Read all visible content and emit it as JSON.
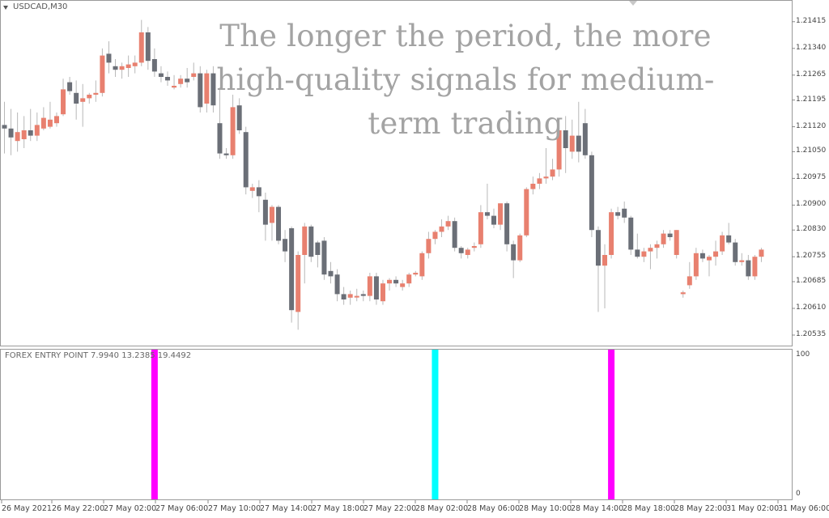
{
  "window": {
    "symbol_title": "USDCAD,M30"
  },
  "overlay": {
    "lines": [
      "The longer the period, the more",
      "high-quality signals for medium-",
      "term trading"
    ]
  },
  "indicator": {
    "title": "FOREX ENTRY POINT 7.9940 13.2385 19.4492",
    "axis_labels": [
      "100",
      "0"
    ],
    "signals": [
      {
        "bar": 23,
        "color": "#ff00ff",
        "type": "sell"
      },
      {
        "bar": 66,
        "color": "#00ffff",
        "type": "buy"
      },
      {
        "bar": 93,
        "color": "#ff00ff",
        "type": "sell"
      }
    ]
  },
  "price_axis": {
    "labels": [
      "1.21415",
      "1.21340",
      "1.21265",
      "1.21195",
      "1.21120",
      "1.21050",
      "1.20975",
      "1.20900",
      "1.20830",
      "1.20755",
      "1.20685",
      "1.20610",
      "1.20535"
    ]
  },
  "time_axis": {
    "labels": [
      "26 May 2021",
      "26 May 22:00",
      "27 May 02:00",
      "27 May 06:00",
      "27 May 10:00",
      "27 May 14:00",
      "27 May 18:00",
      "27 May 22:00",
      "28 May 02:00",
      "28 May 06:00",
      "28 May 10:00",
      "28 May 14:00",
      "28 May 18:00",
      "28 May 22:00",
      "31 May 02:00",
      "31 May 06:00"
    ]
  },
  "colors": {
    "bull": "#e8806f",
    "bear": "#6b6f77",
    "wick": "#b8b8b8",
    "grid_frame": "#9a9a9a",
    "overlay_text": "#a3a3a3"
  },
  "chart_data": {
    "type": "candlestick",
    "symbol": "USDCAD",
    "timeframe": "M30",
    "ylim": [
      1.2051,
      1.2146
    ],
    "candles": [
      {
        "o": 1.21125,
        "h": 1.2119,
        "l": 1.21045,
        "c": 1.21115
      },
      {
        "o": 1.21115,
        "h": 1.2117,
        "l": 1.2104,
        "c": 1.2109
      },
      {
        "o": 1.2108,
        "h": 1.2116,
        "l": 1.2105,
        "c": 1.21105
      },
      {
        "o": 1.21085,
        "h": 1.2115,
        "l": 1.2106,
        "c": 1.2111
      },
      {
        "o": 1.2111,
        "h": 1.2117,
        "l": 1.2108,
        "c": 1.21095
      },
      {
        "o": 1.21095,
        "h": 1.2116,
        "l": 1.2108,
        "c": 1.21125
      },
      {
        "o": 1.21115,
        "h": 1.21175,
        "l": 1.2111,
        "c": 1.21145
      },
      {
        "o": 1.2112,
        "h": 1.2119,
        "l": 1.21115,
        "c": 1.2114
      },
      {
        "o": 1.2113,
        "h": 1.2116,
        "l": 1.2112,
        "c": 1.2115
      },
      {
        "o": 1.21155,
        "h": 1.21255,
        "l": 1.2115,
        "c": 1.21225
      },
      {
        "o": 1.21245,
        "h": 1.2126,
        "l": 1.2121,
        "c": 1.2122
      },
      {
        "o": 1.21215,
        "h": 1.2125,
        "l": 1.2114,
        "c": 1.21185
      },
      {
        "o": 1.2119,
        "h": 1.2124,
        "l": 1.2112,
        "c": 1.212
      },
      {
        "o": 1.212,
        "h": 1.21215,
        "l": 1.21185,
        "c": 1.2121
      },
      {
        "o": 1.2121,
        "h": 1.2125,
        "l": 1.2119,
        "c": 1.21215
      },
      {
        "o": 1.21215,
        "h": 1.2134,
        "l": 1.21205,
        "c": 1.2132
      },
      {
        "o": 1.21325,
        "h": 1.2136,
        "l": 1.2127,
        "c": 1.213
      },
      {
        "o": 1.2129,
        "h": 1.2131,
        "l": 1.2126,
        "c": 1.2128
      },
      {
        "o": 1.2128,
        "h": 1.213,
        "l": 1.21255,
        "c": 1.2129
      },
      {
        "o": 1.21285,
        "h": 1.2132,
        "l": 1.2126,
        "c": 1.21295
      },
      {
        "o": 1.2129,
        "h": 1.2132,
        "l": 1.2127,
        "c": 1.213
      },
      {
        "o": 1.213,
        "h": 1.2142,
        "l": 1.2129,
        "c": 1.21385
      },
      {
        "o": 1.21385,
        "h": 1.214,
        "l": 1.2128,
        "c": 1.21305
      },
      {
        "o": 1.2131,
        "h": 1.2134,
        "l": 1.2126,
        "c": 1.21275
      },
      {
        "o": 1.2127,
        "h": 1.2129,
        "l": 1.21245,
        "c": 1.2126
      },
      {
        "o": 1.2126,
        "h": 1.21275,
        "l": 1.21235,
        "c": 1.2125
      },
      {
        "o": 1.2123,
        "h": 1.21265,
        "l": 1.21225,
        "c": 1.21235
      },
      {
        "o": 1.2124,
        "h": 1.21265,
        "l": 1.2123,
        "c": 1.21255
      },
      {
        "o": 1.21255,
        "h": 1.21285,
        "l": 1.2123,
        "c": 1.21245
      },
      {
        "o": 1.2126,
        "h": 1.213,
        "l": 1.2125,
        "c": 1.2127
      },
      {
        "o": 1.2127,
        "h": 1.2129,
        "l": 1.2116,
        "c": 1.21175
      },
      {
        "o": 1.21185,
        "h": 1.2128,
        "l": 1.2116,
        "c": 1.2127
      },
      {
        "o": 1.2127,
        "h": 1.2129,
        "l": 1.2116,
        "c": 1.2118
      },
      {
        "o": 1.2113,
        "h": 1.2123,
        "l": 1.2103,
        "c": 1.21045
      },
      {
        "o": 1.21045,
        "h": 1.2106,
        "l": 1.2103,
        "c": 1.2104
      },
      {
        "o": 1.2104,
        "h": 1.2121,
        "l": 1.2103,
        "c": 1.21175
      },
      {
        "o": 1.2118,
        "h": 1.212,
        "l": 1.211,
        "c": 1.2111
      },
      {
        "o": 1.21105,
        "h": 1.2112,
        "l": 1.2093,
        "c": 1.2095
      },
      {
        "o": 1.2094,
        "h": 1.2096,
        "l": 1.2092,
        "c": 1.2095
      },
      {
        "o": 1.2095,
        "h": 1.2097,
        "l": 1.2088,
        "c": 1.20925
      },
      {
        "o": 1.20915,
        "h": 1.20935,
        "l": 1.208,
        "c": 1.20845
      },
      {
        "o": 1.2085,
        "h": 1.209,
        "l": 1.208,
        "c": 1.20895
      },
      {
        "o": 1.20895,
        "h": 1.209,
        "l": 1.2079,
        "c": 1.208
      },
      {
        "o": 1.20805,
        "h": 1.2083,
        "l": 1.2074,
        "c": 1.2077
      },
      {
        "o": 1.20835,
        "h": 1.2084,
        "l": 1.2057,
        "c": 1.20605
      },
      {
        "o": 1.206,
        "h": 1.2077,
        "l": 1.2055,
        "c": 1.2076
      },
      {
        "o": 1.2076,
        "h": 1.2085,
        "l": 1.2068,
        "c": 1.2084
      },
      {
        "o": 1.2084,
        "h": 1.20845,
        "l": 1.2074,
        "c": 1.20755
      },
      {
        "o": 1.20795,
        "h": 1.208,
        "l": 1.20725,
        "c": 1.2076
      },
      {
        "o": 1.208,
        "h": 1.2081,
        "l": 1.2069,
        "c": 1.20705
      },
      {
        "o": 1.20715,
        "h": 1.2074,
        "l": 1.2068,
        "c": 1.207
      },
      {
        "o": 1.20705,
        "h": 1.2072,
        "l": 1.2063,
        "c": 1.2065
      },
      {
        "o": 1.2065,
        "h": 1.2067,
        "l": 1.2062,
        "c": 1.20635
      },
      {
        "o": 1.2064,
        "h": 1.2066,
        "l": 1.2062,
        "c": 1.2065
      },
      {
        "o": 1.20645,
        "h": 1.20665,
        "l": 1.2063,
        "c": 1.20645
      },
      {
        "o": 1.2065,
        "h": 1.2066,
        "l": 1.2063,
        "c": 1.20645
      },
      {
        "o": 1.20645,
        "h": 1.2071,
        "l": 1.2063,
        "c": 1.207
      },
      {
        "o": 1.207,
        "h": 1.2071,
        "l": 1.2062,
        "c": 1.20635
      },
      {
        "o": 1.2063,
        "h": 1.2069,
        "l": 1.2062,
        "c": 1.2068
      },
      {
        "o": 1.2068,
        "h": 1.20695,
        "l": 1.2066,
        "c": 1.2069
      },
      {
        "o": 1.2069,
        "h": 1.207,
        "l": 1.2067,
        "c": 1.2068
      },
      {
        "o": 1.2067,
        "h": 1.2069,
        "l": 1.2066,
        "c": 1.2068
      },
      {
        "o": 1.2068,
        "h": 1.2071,
        "l": 1.2067,
        "c": 1.20705
      },
      {
        "o": 1.20705,
        "h": 1.20715,
        "l": 1.207,
        "c": 1.2071
      },
      {
        "o": 1.207,
        "h": 1.2077,
        "l": 1.2069,
        "c": 1.20765
      },
      {
        "o": 1.20765,
        "h": 1.20825,
        "l": 1.2075,
        "c": 1.20805
      },
      {
        "o": 1.20805,
        "h": 1.2083,
        "l": 1.2079,
        "c": 1.20825
      },
      {
        "o": 1.20825,
        "h": 1.2086,
        "l": 1.2081,
        "c": 1.2084
      },
      {
        "o": 1.2084,
        "h": 1.2087,
        "l": 1.2083,
        "c": 1.20855
      },
      {
        "o": 1.20855,
        "h": 1.20865,
        "l": 1.2077,
        "c": 1.2078
      },
      {
        "o": 1.2078,
        "h": 1.20785,
        "l": 1.2075,
        "c": 1.20765
      },
      {
        "o": 1.2076,
        "h": 1.2078,
        "l": 1.2075,
        "c": 1.20775
      },
      {
        "o": 1.2078,
        "h": 1.20795,
        "l": 1.2077,
        "c": 1.20785
      },
      {
        "o": 1.2079,
        "h": 1.209,
        "l": 1.2078,
        "c": 1.2088
      },
      {
        "o": 1.2088,
        "h": 1.2096,
        "l": 1.2086,
        "c": 1.2087
      },
      {
        "o": 1.2087,
        "h": 1.2089,
        "l": 1.20835,
        "c": 1.20845
      },
      {
        "o": 1.20845,
        "h": 1.209,
        "l": 1.2083,
        "c": 1.20905
      },
      {
        "o": 1.20905,
        "h": 1.2091,
        "l": 1.2077,
        "c": 1.2079
      },
      {
        "o": 1.2079,
        "h": 1.208,
        "l": 1.20695,
        "c": 1.20745
      },
      {
        "o": 1.20745,
        "h": 1.2082,
        "l": 1.2074,
        "c": 1.20815
      },
      {
        "o": 1.20815,
        "h": 1.2095,
        "l": 1.2081,
        "c": 1.20945
      },
      {
        "o": 1.20945,
        "h": 1.2098,
        "l": 1.2093,
        "c": 1.2096
      },
      {
        "o": 1.2096,
        "h": 1.2099,
        "l": 1.20945,
        "c": 1.20975
      },
      {
        "o": 1.20975,
        "h": 1.2106,
        "l": 1.2096,
        "c": 1.2098
      },
      {
        "o": 1.2098,
        "h": 1.2103,
        "l": 1.2097,
        "c": 1.21
      },
      {
        "o": 1.21,
        "h": 1.2113,
        "l": 1.2098,
        "c": 1.2111
      },
      {
        "o": 1.2111,
        "h": 1.2115,
        "l": 1.2099,
        "c": 1.2106
      },
      {
        "o": 1.2105,
        "h": 1.2114,
        "l": 1.2103,
        "c": 1.21095
      },
      {
        "o": 1.21095,
        "h": 1.2119,
        "l": 1.2102,
        "c": 1.2105
      },
      {
        "o": 1.2113,
        "h": 1.2117,
        "l": 1.2103,
        "c": 1.2104
      },
      {
        "o": 1.2104,
        "h": 1.2105,
        "l": 1.2081,
        "c": 1.2083
      },
      {
        "o": 1.2083,
        "h": 1.2084,
        "l": 1.206,
        "c": 1.2073
      },
      {
        "o": 1.2073,
        "h": 1.2079,
        "l": 1.2061,
        "c": 1.2076
      },
      {
        "o": 1.2076,
        "h": 1.2089,
        "l": 1.2075,
        "c": 1.2088
      },
      {
        "o": 1.2088,
        "h": 1.20895,
        "l": 1.2086,
        "c": 1.2087
      },
      {
        "o": 1.2089,
        "h": 1.2091,
        "l": 1.2085,
        "c": 1.20865
      },
      {
        "o": 1.20865,
        "h": 1.2087,
        "l": 1.2076,
        "c": 1.20775
      },
      {
        "o": 1.20775,
        "h": 1.2082,
        "l": 1.2075,
        "c": 1.20755
      },
      {
        "o": 1.20755,
        "h": 1.2078,
        "l": 1.2074,
        "c": 1.2077
      },
      {
        "o": 1.2077,
        "h": 1.2079,
        "l": 1.2072,
        "c": 1.2078
      },
      {
        "o": 1.2078,
        "h": 1.208,
        "l": 1.2075,
        "c": 1.2079
      },
      {
        "o": 1.2079,
        "h": 1.2083,
        "l": 1.2078,
        "c": 1.2082
      },
      {
        "o": 1.2082,
        "h": 1.2083,
        "l": 1.208,
        "c": 1.2081
      },
      {
        "o": 1.2076,
        "h": 1.2083,
        "l": 1.2075,
        "c": 1.2083
      },
      {
        "o": 1.2065,
        "h": 1.2066,
        "l": 1.2064,
        "c": 1.20655
      },
      {
        "o": 1.20675,
        "h": 1.2074,
        "l": 1.20665,
        "c": 1.207
      },
      {
        "o": 1.207,
        "h": 1.2078,
        "l": 1.2069,
        "c": 1.20765
      },
      {
        "o": 1.20765,
        "h": 1.20775,
        "l": 1.2074,
        "c": 1.2075
      },
      {
        "o": 1.20745,
        "h": 1.2076,
        "l": 1.207,
        "c": 1.20755
      },
      {
        "o": 1.20755,
        "h": 1.208,
        "l": 1.2073,
        "c": 1.2077
      },
      {
        "o": 1.2077,
        "h": 1.20825,
        "l": 1.2076,
        "c": 1.20815
      },
      {
        "o": 1.20815,
        "h": 1.2085,
        "l": 1.2079,
        "c": 1.20795
      },
      {
        "o": 1.20795,
        "h": 1.20805,
        "l": 1.2073,
        "c": 1.2074
      },
      {
        "o": 1.2074,
        "h": 1.20765,
        "l": 1.2073,
        "c": 1.20745
      },
      {
        "o": 1.20745,
        "h": 1.2076,
        "l": 1.2069,
        "c": 1.207
      },
      {
        "o": 1.207,
        "h": 1.2076,
        "l": 1.2069,
        "c": 1.20755
      },
      {
        "o": 1.20755,
        "h": 1.2078,
        "l": 1.2074,
        "c": 1.20775
      }
    ]
  }
}
